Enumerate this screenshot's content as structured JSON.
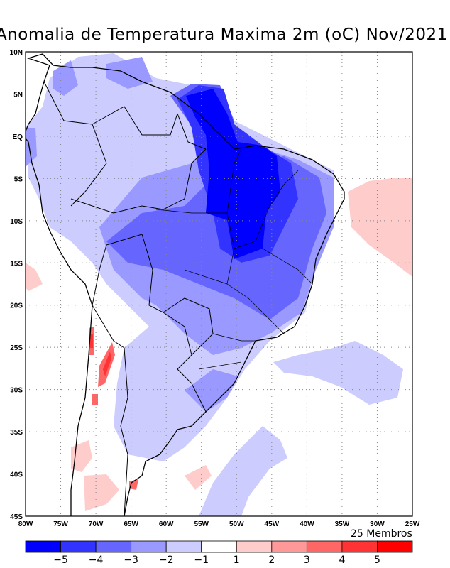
{
  "title": "Anomalia de Temperatura Maxima 2m (oC) Nov/2021",
  "members_label": "25 Membros",
  "lat_labels": [
    "10N",
    "5N",
    "EQ",
    "5S",
    "10S",
    "15S",
    "20S",
    "25S",
    "30S",
    "35S",
    "40S",
    "45S"
  ],
  "lon_labels": [
    "80W",
    "75W",
    "70W",
    "65W",
    "60W",
    "55W",
    "50W",
    "45W",
    "40W",
    "35W",
    "30W",
    "25W"
  ],
  "colorbar": {
    "colors": [
      "#0000ff",
      "#3333ff",
      "#6666ff",
      "#9999ff",
      "#ccccff",
      "#ffffff",
      "#ffcccc",
      "#ff9999",
      "#ff6666",
      "#ff3333",
      "#ff0000"
    ],
    "tick_labels": [
      "-5",
      "-4",
      "-3",
      "-2",
      "-1",
      "1",
      "2",
      "3",
      "4",
      "5"
    ]
  }
}
